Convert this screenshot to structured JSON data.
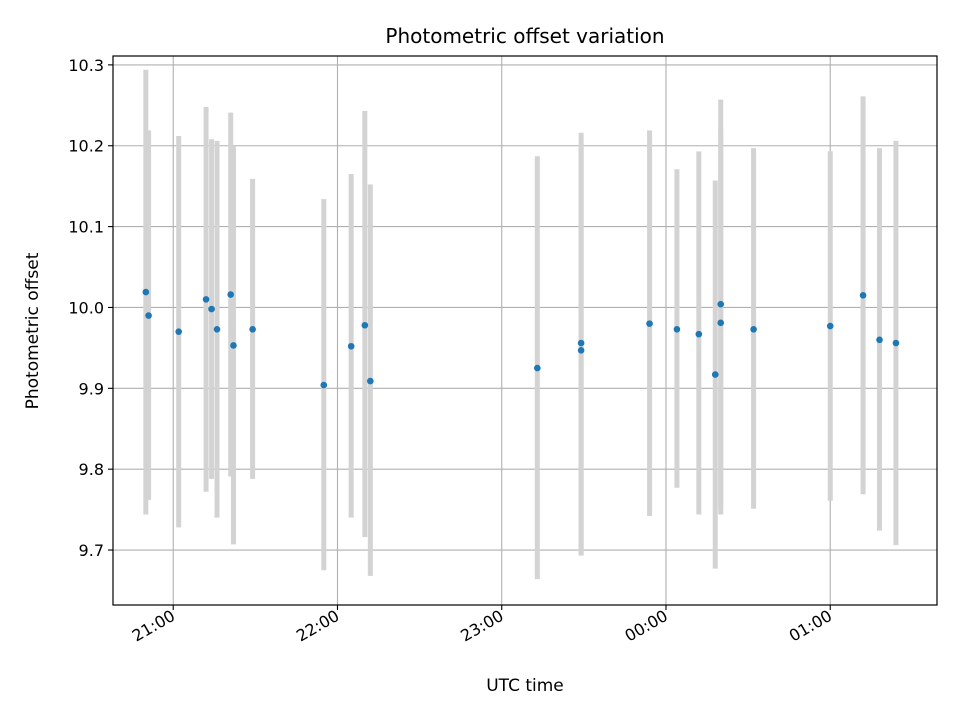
{
  "chart_data": {
    "type": "scatter",
    "title": "Photometric offset variation",
    "xlabel": "UTC time",
    "ylabel": "Photometric offset",
    "x_axis_kind": "time",
    "xlim": [
      "20:38",
      "25:39"
    ],
    "ylim": [
      9.632,
      10.311
    ],
    "x_ticks": [
      "21:00",
      "22:00",
      "23:00",
      "00:00",
      "01:00"
    ],
    "y_ticks": [
      "9.7",
      "9.8",
      "9.9",
      "10.0",
      "10.1",
      "10.2",
      "10.3"
    ],
    "grid": true,
    "colors": {
      "point": "#1f77b4",
      "errorbar": "#d3d3d3",
      "grid": "#b0b0b0"
    },
    "series": [
      {
        "x": [
          "20:50",
          "20:51",
          "21:02",
          "21:12",
          "21:14",
          "21:16",
          "21:21",
          "21:22",
          "21:29",
          "21:55",
          "22:05",
          "22:10",
          "22:12",
          "23:13",
          "23:29",
          "23:29",
          "23:54",
          "24:04",
          "24:12",
          "24:18",
          "24:20",
          "24:20",
          "24:32",
          "25:00",
          "25:12",
          "25:18",
          "25:24"
        ],
        "y": [
          10.019,
          9.99,
          9.97,
          10.01,
          9.998,
          9.973,
          10.016,
          9.953,
          9.973,
          9.904,
          9.952,
          9.978,
          9.909,
          9.925,
          9.947,
          9.956,
          9.98,
          9.973,
          9.967,
          9.917,
          9.981,
          10.004,
          9.973,
          9.977,
          10.015,
          9.96,
          9.956
        ],
        "y_low": [
          9.744,
          9.762,
          9.728,
          9.772,
          9.788,
          9.74,
          9.791,
          9.707,
          9.788,
          9.675,
          9.74,
          9.716,
          9.668,
          9.664,
          9.693,
          9.695,
          9.742,
          9.777,
          9.744,
          9.677,
          9.744,
          9.752,
          9.751,
          9.761,
          9.769,
          9.724,
          9.706
        ],
        "y_high": [
          10.294,
          10.219,
          10.212,
          10.248,
          10.208,
          10.206,
          10.241,
          10.199,
          10.159,
          10.134,
          10.165,
          10.243,
          10.152,
          10.187,
          10.202,
          10.216,
          10.219,
          10.171,
          10.193,
          10.157,
          10.221,
          10.257,
          10.197,
          10.193,
          10.261,
          10.197,
          10.206
        ]
      }
    ]
  }
}
